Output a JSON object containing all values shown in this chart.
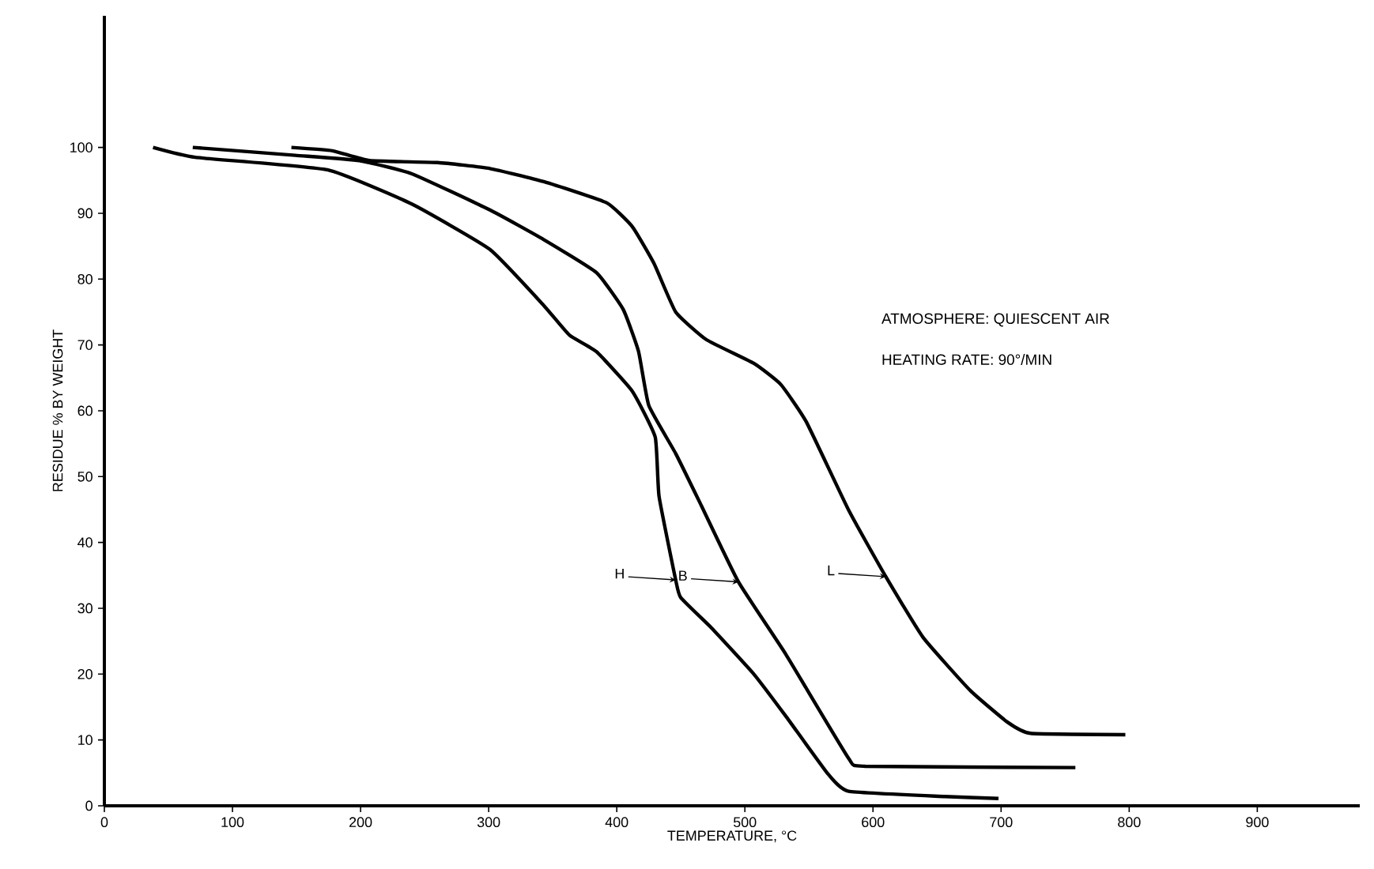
{
  "chart_data": {
    "type": "line",
    "xlabel": "TEMPERATURE, °C",
    "ylabel": "RESIDUE % BY WEIGHT",
    "annotations": [
      "ATMOSPHERE:  QUIESCENT  AIR",
      "HEATING RATE: 90°/MIN"
    ],
    "xlim": [
      0,
      980
    ],
    "ylim": [
      0,
      120
    ],
    "xticks": [
      0,
      100,
      200,
      300,
      400,
      500,
      600,
      700,
      800,
      900
    ],
    "yticks": [
      0,
      10,
      20,
      30,
      40,
      50,
      60,
      70,
      80,
      90,
      100
    ],
    "grid": false,
    "legend": "bottom",
    "marker": "none",
    "line_style": "solid",
    "series": [
      {
        "name": "H",
        "color": "#000000",
        "x": [
          38,
          71,
          174,
          240,
          301,
          343,
          363,
          384,
          412,
          430,
          433,
          446,
          450,
          474,
          507,
          532,
          565,
          581,
          656,
          698
        ],
        "values": [
          100,
          98.5,
          96.6,
          91.4,
          84.5,
          76,
          71.5,
          69,
          63,
          56,
          47,
          34.3,
          31.6,
          27,
          20,
          13.6,
          4.8,
          2.2,
          1.4,
          1.1
        ]
      },
      {
        "name": "B",
        "color": "#000000",
        "x": [
          69,
          149,
          199,
          240,
          301,
          343,
          384,
          405,
          417,
          425,
          446,
          466,
          495,
          532,
          581,
          594,
          758
        ],
        "values": [
          100,
          98.8,
          98,
          96,
          90.5,
          86,
          81,
          75.4,
          69,
          60.8,
          53.5,
          45.6,
          34,
          23,
          7.2,
          6,
          5.8
        ]
      },
      {
        "name": "L",
        "color": "#000000",
        "x": [
          146,
          178,
          207,
          260,
          301,
          343,
          392,
          412,
          429,
          446,
          470,
          507,
          528,
          548,
          581,
          610,
          639,
          676,
          705,
          723,
          797
        ],
        "values": [
          100,
          99.5,
          98,
          97.7,
          96.8,
          94.8,
          91.6,
          88,
          82.4,
          75,
          70.8,
          67.2,
          64,
          58.3,
          44.9,
          34.8,
          25.6,
          17.5,
          12.7,
          11,
          10.8
        ]
      }
    ]
  }
}
